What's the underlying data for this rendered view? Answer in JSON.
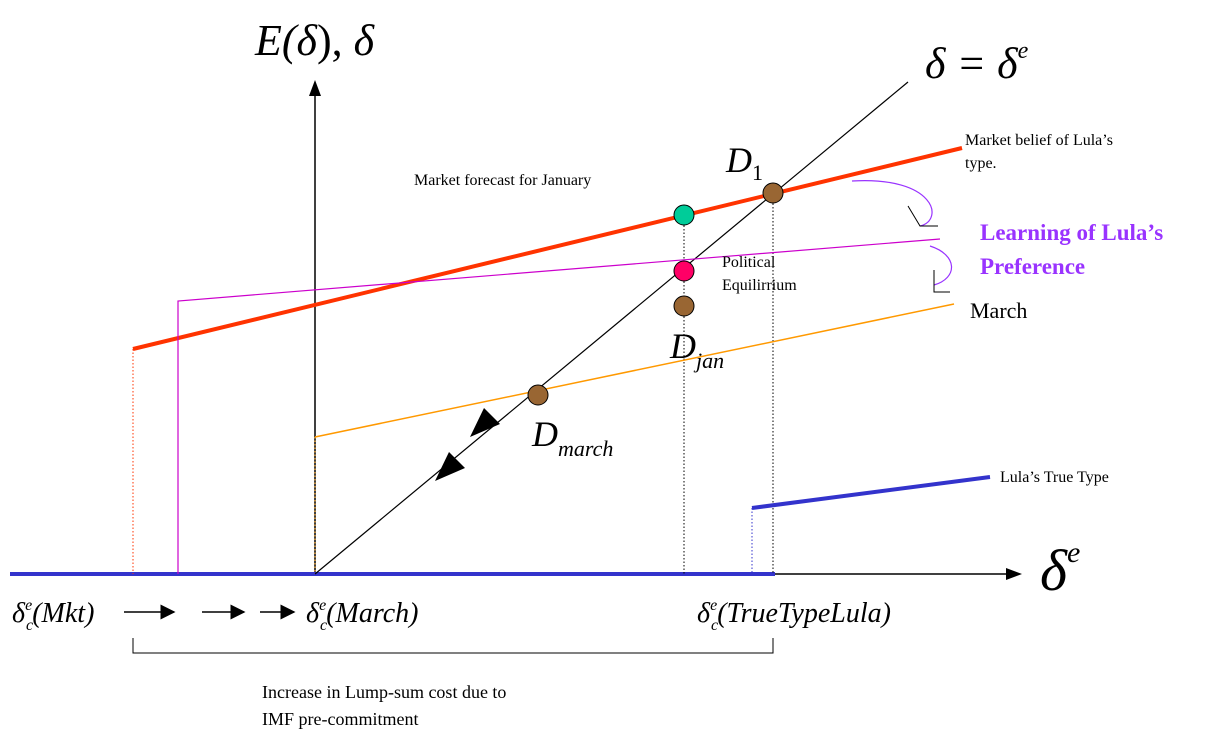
{
  "labels": {
    "y_axis": [
      "E(",
      "δ",
      "), ",
      "δ"
    ],
    "x_axis": {
      "base": "δ",
      "sup": "e"
    },
    "diagonal": {
      "lhs": "δ",
      "eq": " = ",
      "rhs": "δ",
      "sup": "e"
    },
    "market_forecast": "Market  forecast for January",
    "market_belief": [
      "Market belief of Lula’s",
      "type."
    ],
    "learning": [
      "Learning of Lula’s",
      "Preference"
    ],
    "march": "March",
    "political_equilibrium": [
      "Political",
      "Equilirrium"
    ],
    "lula_true_type": "Lula’s True Type",
    "d1": {
      "base": "D",
      "sub": "1"
    },
    "djan": {
      "base": "D",
      "sub": "jan"
    },
    "dmarch": {
      "base": "D",
      "sub": "march"
    },
    "delta_mkt": {
      "base": "δ",
      "sub": "c",
      "sup": "e",
      "arg": "(Mkt)"
    },
    "delta_march": {
      "base": "δ",
      "sub": "c",
      "sup": "e",
      "arg": "(March)"
    },
    "delta_true": {
      "base": "δ",
      "sub": "c",
      "sup": "e",
      "arg": "(TrueTypeLula)"
    },
    "bracket_note": [
      "Increase in Lump-sum cost due to",
      "IMF pre-commitment"
    ]
  },
  "colors": {
    "market_belief_line": "#ff3300",
    "learning_line": "#cc00cc",
    "march_line": "#ff9900",
    "true_type_line": "#3333cc",
    "learning_text": "#9933ff",
    "dot_forecast": "#00cc99",
    "dot_equilibrium": "#ff0066",
    "dot_d": "#996633"
  }
}
